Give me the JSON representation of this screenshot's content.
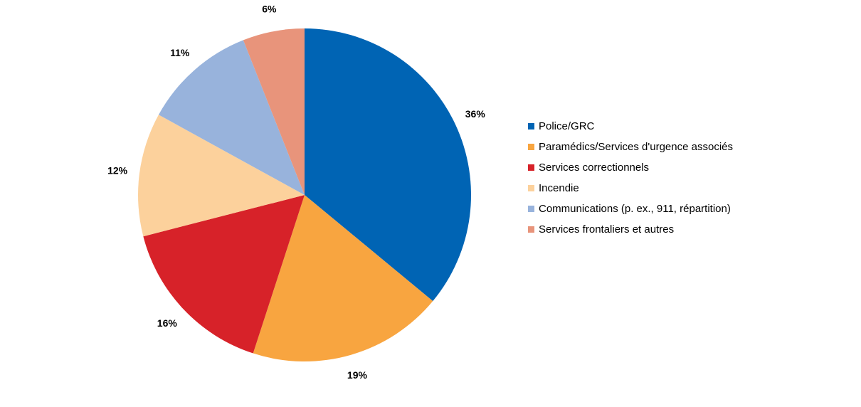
{
  "chart_data": {
    "type": "pie",
    "categories": [
      "Police/GRC",
      "Paramédics/Services d'urgence associés",
      "Services correctionnels",
      "Incendie",
      "Communications (p. ex., 911, répartition)",
      "Services frontaliers et autres"
    ],
    "values": [
      36,
      19,
      16,
      12,
      11,
      6
    ],
    "value_labels": [
      "36%",
      "19%",
      "16%",
      "12%",
      "11%",
      "6%"
    ],
    "colors": [
      "#0064b4",
      "#f8a540",
      "#d72229",
      "#fcd19c",
      "#98b3dc",
      "#e8947b"
    ],
    "start": "12 o'clock, clockwise",
    "legend_position": "right"
  }
}
